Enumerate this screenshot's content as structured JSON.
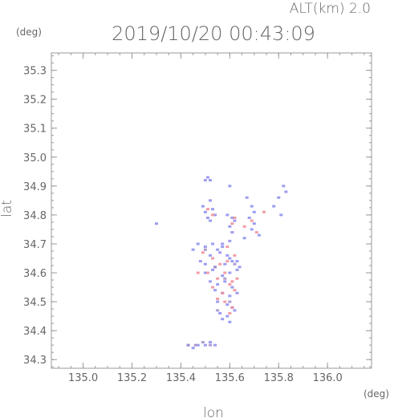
{
  "header": {
    "alt_text": "ALT(km) 2.0",
    "timestamp": "2019/10/20 00:43:09"
  },
  "chart_data": {
    "type": "scatter",
    "title": "2019/10/20 00:43:09",
    "xlabel": "lon",
    "ylabel": "lat",
    "x_unit": "(deg)",
    "y_unit": "(deg)",
    "xlim": [
      134.87,
      136.18
    ],
    "ylim": [
      34.27,
      35.36
    ],
    "x_ticks": [
      "135.0",
      "135.2",
      "135.4",
      "135.6",
      "135.8",
      "136.0"
    ],
    "y_ticks": [
      "34.3",
      "34.4",
      "34.5",
      "34.6",
      "34.7",
      "34.8",
      "34.9",
      "35.0",
      "35.1",
      "35.2",
      "35.3"
    ],
    "grid": false,
    "colors": {
      "blue": "#8c8cf0",
      "red": "#f08c96",
      "purple": "#a08cc8",
      "axis": "#999999"
    },
    "series": [
      {
        "color": "blue",
        "x": [
          135.5,
          135.51,
          135.52,
          135.49,
          135.52,
          135.53,
          135.5,
          135.51,
          135.54,
          135.52,
          135.6,
          135.59,
          135.61,
          135.62,
          135.6,
          135.61,
          135.67,
          135.69,
          135.7,
          135.68,
          135.7,
          135.69,
          135.78,
          135.8,
          135.82,
          135.83,
          135.81,
          135.45,
          135.47,
          135.5,
          135.53,
          135.55,
          135.57,
          135.52,
          135.56,
          135.59,
          135.6,
          135.63,
          135.48,
          135.5,
          135.54,
          135.58,
          135.61,
          135.64,
          135.5,
          135.53,
          135.57,
          135.6,
          135.63,
          135.52,
          135.55,
          135.58,
          135.61,
          135.54,
          135.57,
          135.6,
          135.63,
          135.55,
          135.59,
          135.61,
          135.56,
          135.59,
          135.62,
          135.57,
          135.6,
          135.43,
          135.45,
          135.47,
          135.5,
          135.52,
          135.54,
          135.3,
          135.57,
          135.6,
          135.66,
          135.72
        ],
        "y": [
          34.92,
          34.93,
          34.92,
          34.83,
          34.85,
          34.82,
          34.81,
          34.79,
          34.8,
          34.78,
          34.9,
          34.8,
          34.79,
          34.78,
          34.76,
          34.74,
          34.86,
          34.83,
          34.81,
          34.79,
          34.77,
          34.75,
          34.83,
          34.86,
          34.9,
          34.88,
          34.8,
          34.68,
          34.7,
          34.69,
          34.7,
          34.68,
          34.69,
          34.66,
          34.67,
          34.66,
          34.65,
          34.64,
          34.64,
          34.63,
          34.62,
          34.63,
          34.64,
          34.62,
          34.6,
          34.61,
          34.59,
          34.6,
          34.61,
          34.57,
          34.56,
          34.57,
          34.55,
          34.54,
          34.53,
          34.52,
          34.53,
          34.5,
          34.49,
          34.48,
          34.46,
          34.45,
          34.47,
          34.44,
          34.43,
          34.35,
          34.34,
          34.35,
          34.35,
          34.36,
          34.35,
          34.77,
          34.7,
          34.71,
          34.72,
          34.73
        ]
      },
      {
        "color": "red",
        "x": [
          135.51,
          135.53,
          135.61,
          135.62,
          135.66,
          135.69,
          135.71,
          135.74,
          135.49,
          135.53,
          135.56,
          135.59,
          135.62,
          135.51,
          135.55,
          135.58,
          135.61,
          135.53,
          135.57,
          135.6,
          135.62,
          135.58,
          135.61,
          135.6,
          135.47,
          135.59,
          135.55,
          135.63
        ],
        "y": [
          34.82,
          34.8,
          34.77,
          34.79,
          34.76,
          34.78,
          34.74,
          34.81,
          34.67,
          34.65,
          34.63,
          34.64,
          34.66,
          34.6,
          34.58,
          34.6,
          34.57,
          34.55,
          34.53,
          34.56,
          34.54,
          34.5,
          34.48,
          34.46,
          34.6,
          34.69,
          34.51,
          34.58
        ]
      },
      {
        "color": "purple",
        "x": [
          135.43,
          135.46,
          135.49,
          135.52,
          135.5,
          135.54,
          135.58,
          135.62,
          135.55,
          135.6
        ],
        "y": [
          34.35,
          34.35,
          34.36,
          34.35,
          34.68,
          34.62,
          34.58,
          34.63,
          34.47,
          34.5
        ]
      }
    ]
  }
}
